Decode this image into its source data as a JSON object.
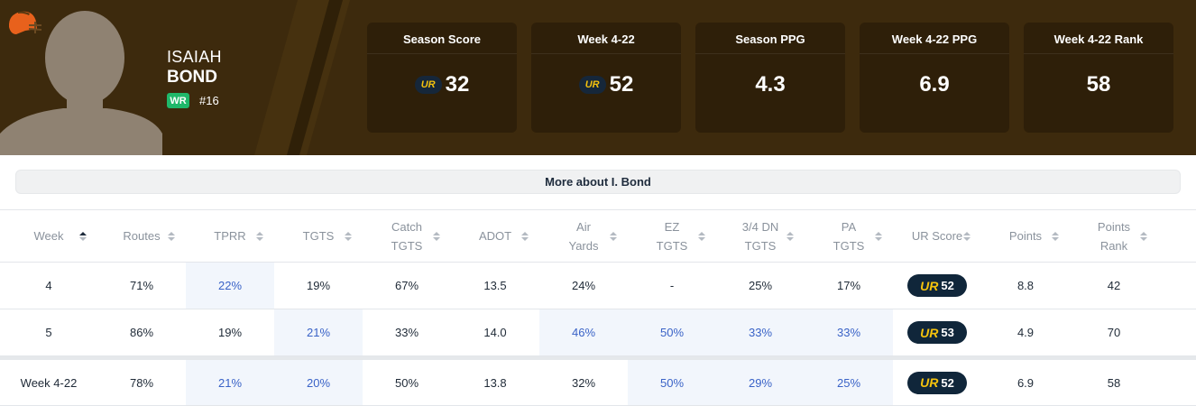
{
  "player": {
    "first_name": "ISAIAH",
    "last_name": "BOND",
    "position": "WR",
    "jersey": "#16",
    "icons": {
      "team": "team-helmet-icon",
      "photo": "player-silhouette-icon"
    }
  },
  "colors": {
    "header_bg": "#3d2a0d",
    "card_bg": "#2e1f09",
    "position_badge": "#1fb86a",
    "ur_gold": "#f4c20d",
    "ur_navy": "#10263a",
    "highlight_blue": "#3a63c7"
  },
  "stats": [
    {
      "label": "Season Score",
      "value": "32",
      "logo": "UR"
    },
    {
      "label": "Week 4-22",
      "value": "52",
      "logo": "UR"
    },
    {
      "label": "Season PPG",
      "value": "4.3"
    },
    {
      "label": "Week 4-22 PPG",
      "value": "6.9"
    },
    {
      "label": "Week 4-22 Rank",
      "value": "58"
    }
  ],
  "more_button": "More about I. Bond",
  "ur_mark": "UR",
  "table": {
    "headers": [
      "Week",
      "Routes",
      "TPRR",
      "TGTS",
      "Catch\nTGTS",
      "ADOT",
      "Air\nYards",
      "EZ\nTGTS",
      "3/4 DN\nTGTS",
      "PA\nTGTS",
      "UR Score",
      "Points",
      "Points\nRank"
    ],
    "rows": [
      {
        "cells": [
          "4",
          "71%",
          "22%",
          "19%",
          "67%",
          "13.5",
          "24%",
          "-",
          "25%",
          "17%",
          "52",
          "8.8",
          "42"
        ]
      },
      {
        "cells": [
          "5",
          "86%",
          "19%",
          "21%",
          "33%",
          "14.0",
          "46%",
          "50%",
          "33%",
          "33%",
          "53",
          "4.9",
          "70"
        ]
      }
    ],
    "total": {
      "cells": [
        "Week 4-22",
        "78%",
        "21%",
        "20%",
        "50%",
        "13.8",
        "32%",
        "50%",
        "29%",
        "25%",
        "52",
        "6.9",
        "58"
      ]
    }
  }
}
